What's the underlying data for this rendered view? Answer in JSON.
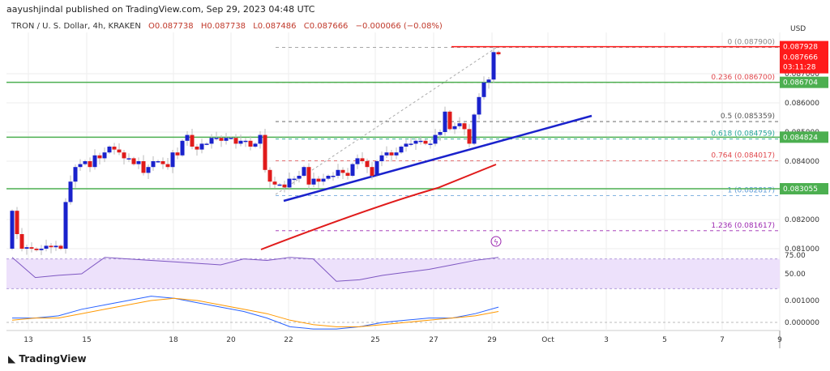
{
  "header": {
    "published": "aayushjindal published on TradingView.com, Sep 29, 2023 04:48 UTC",
    "symbol": "TRON / U. S. Dollar, 4h, KRAKEN",
    "open": "O0.087738",
    "high": "H0.087738",
    "low": "L0.087486",
    "close": "C0.087666",
    "change": "−0.000066 (−0.08%)"
  },
  "footer": {
    "logo": "TradingView"
  },
  "chart_data": {
    "type": "candlestick",
    "currency": "USD",
    "x_ticks": [
      "13",
      "15",
      "18",
      "20",
      "22",
      "25",
      "27",
      "29",
      "Oct",
      "3",
      "5",
      "7",
      "9"
    ],
    "y_ticks": [
      "0.087000",
      "0.086000",
      "0.085000",
      "0.084000",
      "0.082000",
      "0.081000"
    ],
    "first_open": 0.081,
    "closes": [
      0.0823,
      0.0815,
      0.081,
      0.08105,
      0.081,
      0.08095,
      0.081,
      0.0811,
      0.08105,
      0.0811,
      0.081,
      0.0826,
      0.0833,
      0.0838,
      0.0839,
      0.084,
      0.0838,
      0.0842,
      0.0841,
      0.0843,
      0.0845,
      0.0844,
      0.0843,
      0.0841,
      0.0841,
      0.0839,
      0.084,
      0.0836,
      0.0838,
      0.084,
      0.084,
      0.0839,
      0.0838,
      0.0843,
      0.0842,
      0.0847,
      0.0849,
      0.0845,
      0.0844,
      0.0846,
      0.0846,
      0.0848,
      0.0848,
      0.0847,
      0.0848,
      0.0848,
      0.0846,
      0.0847,
      0.0847,
      0.0845,
      0.0846,
      0.0849,
      0.0837,
      0.0833,
      0.0832,
      0.0832,
      0.0831,
      0.0834,
      0.0834,
      0.0835,
      0.0838,
      0.0832,
      0.0834,
      0.0833,
      0.0834,
      0.0835,
      0.0835,
      0.0837,
      0.0836,
      0.0835,
      0.0839,
      0.0841,
      0.084,
      0.0838,
      0.0835,
      0.084,
      0.0842,
      0.0843,
      0.0842,
      0.0843,
      0.0845,
      0.0846,
      0.0846,
      0.0847,
      0.0847,
      0.0846,
      0.0846,
      0.0849,
      0.085,
      0.0857,
      0.0851,
      0.0852,
      0.0853,
      0.0851,
      0.0846,
      0.0856,
      0.0862,
      0.0867,
      0.0868,
      0.08774,
      0.087666
    ],
    "horizontal_levels": [
      {
        "price": 0.086704,
        "label": "0.086704",
        "color": "#4caf50"
      },
      {
        "price": 0.084824,
        "label": "0.084824",
        "color": "#4caf50"
      },
      {
        "price": 0.083055,
        "label": "0.083055",
        "color": "#4caf50"
      }
    ],
    "resistance": {
      "price": 0.087928,
      "label": "0.087928",
      "color": "#ff1a1a"
    },
    "last_price": {
      "label": "0.087666",
      "countdown": "03:11:28",
      "color": "#ff1a1a"
    },
    "fib_levels": [
      {
        "label": "0 (0.087900)",
        "price": 0.0879,
        "color": "#888888"
      },
      {
        "label": "0.236 (0.086700)",
        "price": 0.0867,
        "color": "#e0474c"
      },
      {
        "label": "0.5 (0.085359)",
        "price": 0.085359,
        "color": "#555555"
      },
      {
        "label": "0.618 (0.084759)",
        "price": 0.084759,
        "color": "#26a69a"
      },
      {
        "label": "0.764 (0.084017)",
        "price": 0.084017,
        "color": "#e0474c"
      },
      {
        "label": "1 (0.082817)",
        "price": 0.082817,
        "color": "#5b9bd5"
      },
      {
        "label": "1.236 (0.081617)",
        "price": 0.081617,
        "color": "#9c27b0"
      }
    ],
    "trendline": {
      "from": [
        0.0826,
        "Sep 21"
      ],
      "to": [
        0.08555,
        "Oct 2"
      ],
      "color": "#1a22cc"
    },
    "moving_average": {
      "color": "#e01b1b"
    },
    "rsi": {
      "ticks": [
        "75.00",
        "50.00"
      ],
      "values": [
        72,
        45,
        48,
        50,
        72,
        70,
        68,
        66,
        64,
        62,
        70,
        68,
        72,
        70,
        40,
        42,
        48,
        52,
        56,
        62,
        68,
        72
      ]
    },
    "macd": {
      "ticks": [
        "0.001000",
        "0.000000"
      ],
      "macd": [
        0.0002,
        0.0002,
        0.0003,
        0.0006,
        0.0008,
        0.001,
        0.0012,
        0.0011,
        0.0009,
        0.0007,
        0.0005,
        0.0002,
        -0.0002,
        -0.0003,
        -0.0003,
        -0.0002,
        0,
        0.0001,
        0.0002,
        0.0002,
        0.0004,
        0.0007
      ],
      "signal": [
        0.0001,
        0.0002,
        0.0002,
        0.0004,
        0.0006,
        0.0008,
        0.001,
        0.0011,
        0.001,
        0.0008,
        0.0006,
        0.0004,
        0.0001,
        -0.0001,
        -0.0002,
        -0.0002,
        -0.0001,
        0,
        0.0001,
        0.0002,
        0.0003,
        0.0005
      ]
    }
  }
}
